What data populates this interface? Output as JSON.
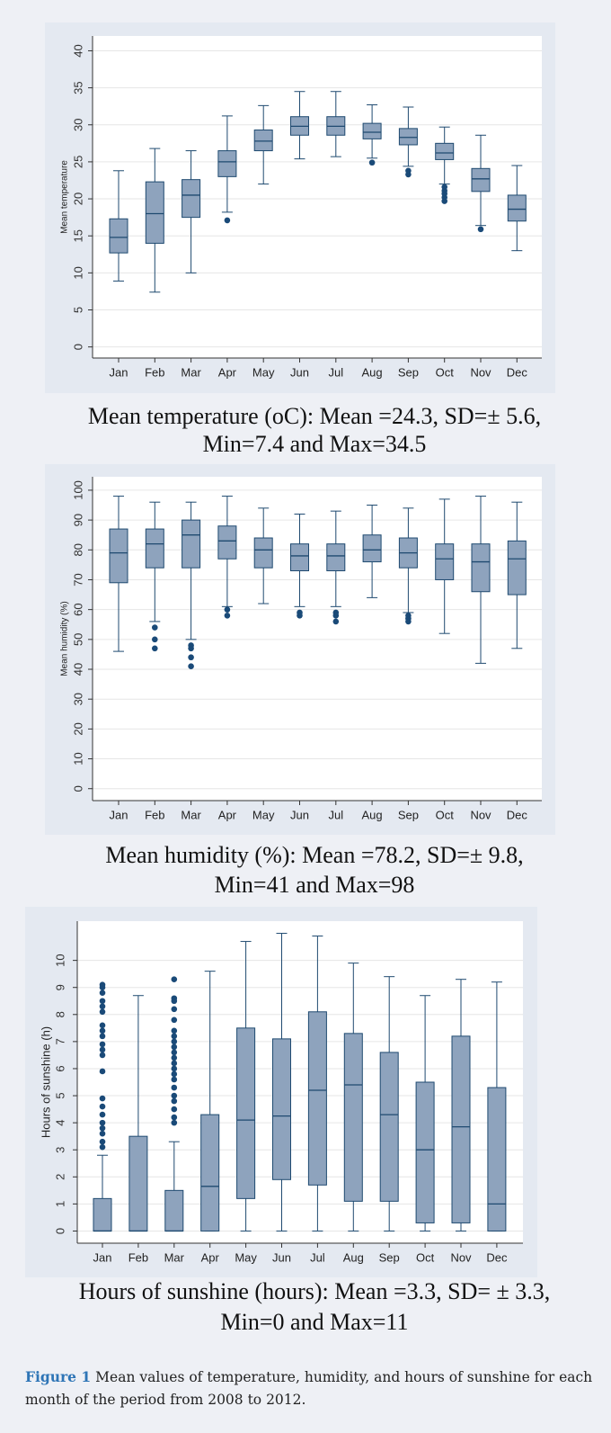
{
  "chart_data": [
    {
      "type": "box",
      "y_label": "Mean temperature",
      "color": "#8ea3bd",
      "line_color": "#1f4a70",
      "categories": [
        "Jan",
        "Feb",
        "Mar",
        "Apr",
        "May",
        "Jun",
        "Jul",
        "Aug",
        "Sep",
        "Oct",
        "Nov",
        "Dec"
      ],
      "whisker_low": [
        8.9,
        7.4,
        10,
        18.2,
        22,
        25.4,
        25.7,
        25.5,
        24.4,
        22,
        16.4,
        13
      ],
      "q1": [
        12.7,
        14,
        17.5,
        23,
        26.5,
        28.6,
        28.6,
        28.1,
        27.3,
        25.3,
        21,
        17
      ],
      "median": [
        14.8,
        18,
        20.5,
        25,
        27.8,
        29.8,
        29.8,
        29,
        28.3,
        26.2,
        22.7,
        18.6
      ],
      "q3": [
        17.3,
        22.3,
        22.6,
        26.5,
        29.3,
        31.1,
        31.1,
        30.2,
        29.5,
        27.5,
        24.1,
        20.5
      ],
      "whisker_high": [
        23.8,
        26.8,
        26.5,
        31.2,
        32.6,
        34.5,
        34.5,
        32.7,
        32.4,
        29.7,
        28.6,
        24.5
      ],
      "outliers": [
        [],
        [],
        [],
        [
          17.1
        ],
        [],
        [],
        [],
        [
          24.9
        ],
        [
          23.3,
          23.8
        ],
        [
          19.7,
          20.2,
          20.7,
          21.1,
          21.6
        ],
        [
          15.9
        ],
        []
      ],
      "ylim": [
        -1.5,
        42
      ],
      "yticks": [
        0,
        5,
        10,
        15,
        20,
        25,
        30,
        35,
        40
      ],
      "grid": true,
      "caption": [
        "Mean temperature (oC): Mean =24.3, SD=± 5.6,",
        "Min=7.4 and Max=34.5"
      ]
    },
    {
      "type": "box",
      "y_label": "Mean humidity (%)",
      "color": "#8ea3bd",
      "line_color": "#1f4a70",
      "categories": [
        "Jan",
        "Feb",
        "Mar",
        "Apr",
        "May",
        "Jun",
        "Jul",
        "Aug",
        "Sep",
        "Oct",
        "Nov",
        "Dec"
      ],
      "whisker_low": [
        46,
        56,
        50,
        61,
        62,
        61,
        61,
        64,
        59,
        52,
        42,
        47
      ],
      "q1": [
        69,
        74,
        74,
        77,
        74,
        73,
        73,
        76,
        74,
        70,
        66,
        65
      ],
      "median": [
        79,
        82,
        85,
        83,
        80,
        78,
        78,
        80,
        79,
        77,
        76,
        77
      ],
      "q3": [
        87,
        87,
        90,
        88,
        84,
        82,
        82,
        85,
        84,
        82,
        82,
        83
      ],
      "whisker_high": [
        98,
        96,
        96,
        98,
        94,
        92,
        93,
        95,
        94,
        97,
        98,
        96
      ],
      "outliers": [
        [],
        [
          47,
          50,
          54
        ],
        [
          41,
          44,
          47,
          48
        ],
        [
          58,
          60
        ],
        [],
        [
          58,
          59
        ],
        [
          56,
          58,
          59
        ],
        [],
        [
          56,
          57,
          58
        ],
        [],
        [],
        []
      ],
      "ylim": [
        -4,
        104.5
      ],
      "yticks": [
        0,
        10,
        20,
        30,
        40,
        50,
        60,
        70,
        80,
        90,
        100
      ],
      "grid": true,
      "caption": [
        "Mean humidity (%): Mean =78.2, SD=± 9.8,",
        "Min=41 and Max=98"
      ]
    },
    {
      "type": "box",
      "y_label": "Hours of sunshine (h)",
      "color": "#8ea3bd",
      "line_color": "#1f4a70",
      "categories": [
        "Jan",
        "Feb",
        "Mar",
        "Apr",
        "May",
        "Jun",
        "Jul",
        "Aug",
        "Sep",
        "Oct",
        "Nov",
        "Dec"
      ],
      "whisker_low": [
        0,
        0,
        0,
        0,
        0,
        0,
        0,
        0,
        0,
        0,
        0,
        0
      ],
      "q1": [
        0,
        0,
        0,
        0,
        1.2,
        1.9,
        1.7,
        1.1,
        1.1,
        0.3,
        0.3,
        0
      ],
      "median": [
        0,
        0,
        0,
        1.65,
        4.1,
        4.25,
        5.2,
        5.4,
        4.3,
        3,
        3.85,
        1
      ],
      "q3": [
        1.2,
        3.5,
        1.5,
        4.3,
        7.5,
        7.1,
        8.1,
        7.3,
        6.6,
        5.5,
        7.2,
        5.3
      ],
      "whisker_high": [
        2.8,
        8.7,
        3.3,
        9.6,
        10.7,
        11,
        10.9,
        9.9,
        9.4,
        8.7,
        9.3,
        9.2
      ],
      "outliers": [
        [
          3.1,
          3.3,
          3.6,
          3.8,
          4,
          4.3,
          4.6,
          4.9,
          5.9,
          6.5,
          6.7,
          6.9,
          7.2,
          7.4,
          7.6,
          8.1,
          8.3,
          8.5,
          8.8,
          9,
          9.1
        ],
        [],
        [
          4,
          4.2,
          4.5,
          4.8,
          5,
          5.3,
          5.6,
          5.8,
          6,
          6.2,
          6.4,
          6.6,
          6.8,
          7,
          7.2,
          7.4,
          7.8,
          8.2,
          8.5,
          8.6,
          9.3
        ],
        [],
        [],
        [],
        [],
        [],
        [],
        [],
        [],
        []
      ],
      "ylim": [
        -0.45,
        11.45
      ],
      "yticks": [
        0,
        1,
        2,
        3,
        4,
        5,
        6,
        7,
        8,
        9,
        10
      ],
      "grid": true,
      "caption": [
        "Hours of sunshine (hours): Mean =3.3, SD= ± 3.3,",
        "Min=0 and Max=11"
      ]
    }
  ],
  "figure_caption": {
    "label": "Figure 1",
    "text": "Mean values of temperature, humidity, and hours of sunshine for each month of the period from 2008 to 2012."
  }
}
